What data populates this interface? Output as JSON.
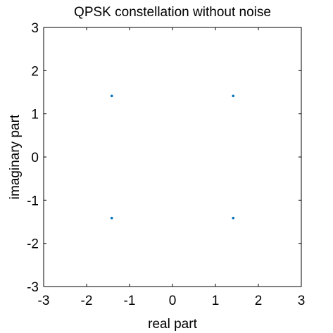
{
  "chart_data": {
    "type": "scatter",
    "title": "QPSK constellation without noise",
    "xlabel": "real part",
    "ylabel": "imaginary part",
    "xlim": [
      -3,
      3
    ],
    "ylim": [
      -3,
      3
    ],
    "xticks": [
      -3,
      -2,
      -1,
      0,
      1,
      2,
      3
    ],
    "yticks": [
      -3,
      -2,
      -1,
      0,
      1,
      2,
      3
    ],
    "xtick_labels": [
      "-3",
      "-2",
      "-1",
      "0",
      "1",
      "2",
      "3"
    ],
    "ytick_labels": [
      "-3",
      "-2",
      "-1",
      "0",
      "1",
      "2",
      "3"
    ],
    "grid": false,
    "legend": false,
    "series": [
      {
        "color": "#0072BD",
        "marker": "dot",
        "points": [
          {
            "x": -1.414,
            "y": 1.414
          },
          {
            "x": 1.414,
            "y": 1.414
          },
          {
            "x": -1.414,
            "y": -1.414
          },
          {
            "x": 1.414,
            "y": -1.414
          }
        ]
      }
    ]
  }
}
